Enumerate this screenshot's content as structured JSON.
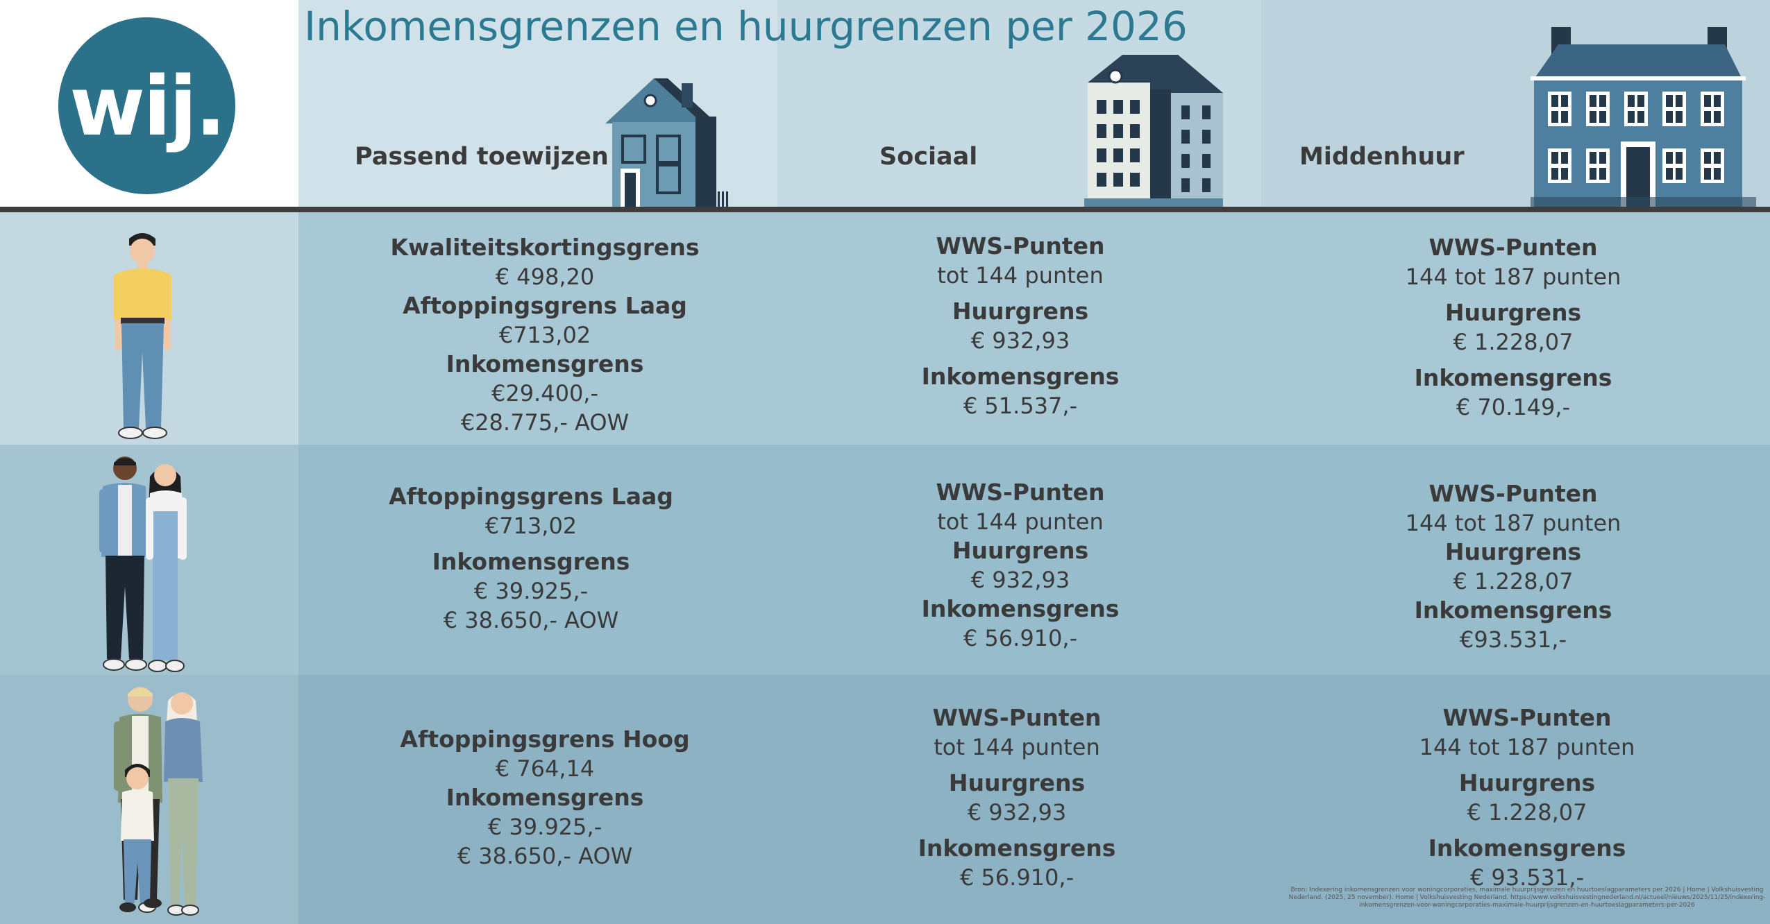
{
  "title": "Inkomensgrenzen en huurgrenzen per 2026",
  "logo_text": "wij.",
  "columns": [
    "Passend toewijzen",
    "Sociaal",
    "Middenhuur"
  ],
  "rows": [
    {
      "passend": [
        {
          "label": "Kwaliteitskortingsgrens",
          "values": [
            "€ 498,20"
          ]
        },
        {
          "label": "Aftoppingsgrens Laag",
          "values": [
            "€713,02"
          ]
        },
        {
          "label": "Inkomensgrens",
          "values": [
            "€29.400,-",
            "€28.775,- AOW"
          ]
        }
      ],
      "sociaal": [
        {
          "label": "WWS-Punten",
          "values": [
            "tot 144 punten"
          ]
        },
        {
          "label": "Huurgrens",
          "values": [
            "€ 932,93"
          ]
        },
        {
          "label": "Inkomensgrens",
          "values": [
            "€ 51.537,-"
          ]
        }
      ],
      "middenhuur": [
        {
          "label": "WWS-Punten",
          "values": [
            "144 tot 187 punten"
          ]
        },
        {
          "label": "Huurgrens",
          "values": [
            "€ 1.228,07"
          ]
        },
        {
          "label": "Inkomensgrens",
          "values": [
            "€ 70.149,-"
          ]
        }
      ]
    },
    {
      "passend": [
        {
          "label": "Aftoppingsgrens Laag",
          "values": [
            "€713,02"
          ]
        },
        {
          "label": "Inkomensgrens",
          "values": [
            "€ 39.925,-",
            "€ 38.650,- AOW"
          ]
        }
      ],
      "sociaal": [
        {
          "label": "WWS-Punten",
          "values": [
            "tot 144 punten"
          ]
        },
        {
          "label": "Huurgrens",
          "values": [
            "€ 932,93"
          ]
        },
        {
          "label": "Inkomensgrens",
          "values": [
            "€ 56.910,-"
          ]
        }
      ],
      "middenhuur": [
        {
          "label": "WWS-Punten",
          "values": [
            "144 tot 187 punten"
          ]
        },
        {
          "label": "Huurgrens",
          "values": [
            "€ 1.228,07"
          ]
        },
        {
          "label": "Inkomensgrens",
          "values": [
            "€93.531,-"
          ]
        }
      ]
    },
    {
      "passend": [
        {
          "label": "Aftoppingsgrens Hoog",
          "values": [
            "€ 764,14"
          ]
        },
        {
          "label": "Inkomensgrens",
          "values": [
            "€ 39.925,-",
            "€ 38.650,- AOW"
          ]
        }
      ],
      "sociaal": [
        {
          "label": "WWS-Punten",
          "values": [
            "tot 144 punten"
          ]
        },
        {
          "label": "Huurgrens",
          "values": [
            "€ 932,93"
          ]
        },
        {
          "label": "Inkomensgrens",
          "values": [
            "€ 56.910,-"
          ]
        }
      ],
      "middenhuur": [
        {
          "label": "WWS-Punten",
          "values": [
            "144 tot 187 punten"
          ]
        },
        {
          "label": "Huurgrens",
          "values": [
            "€ 1.228,07"
          ]
        },
        {
          "label": "Inkomensgrens",
          "values": [
            "€ 93.531,-"
          ]
        }
      ]
    }
  ],
  "source": "Bron: Indexering inkomensgrenzen voor woningcorporaties, maximale huurprijsgrenzen en huurtoeslagparameters per 2026 | Home | Volkshuisvesting Nederland. (2025, 25 november). Home | Volkshuisvesting Nederland. https://www.volkshuisvestingnederland.nl/actueel/nieuws/2025/11/25/indexering-inkomensgrenzen-voor-woningcorporaties-maximale-huurprijsgrenzen-en-huurtoeslagparameters-per-2026",
  "colors": {
    "brand": "#2a7189",
    "title": "#2b7a92",
    "divider": "#3d3d3d"
  }
}
